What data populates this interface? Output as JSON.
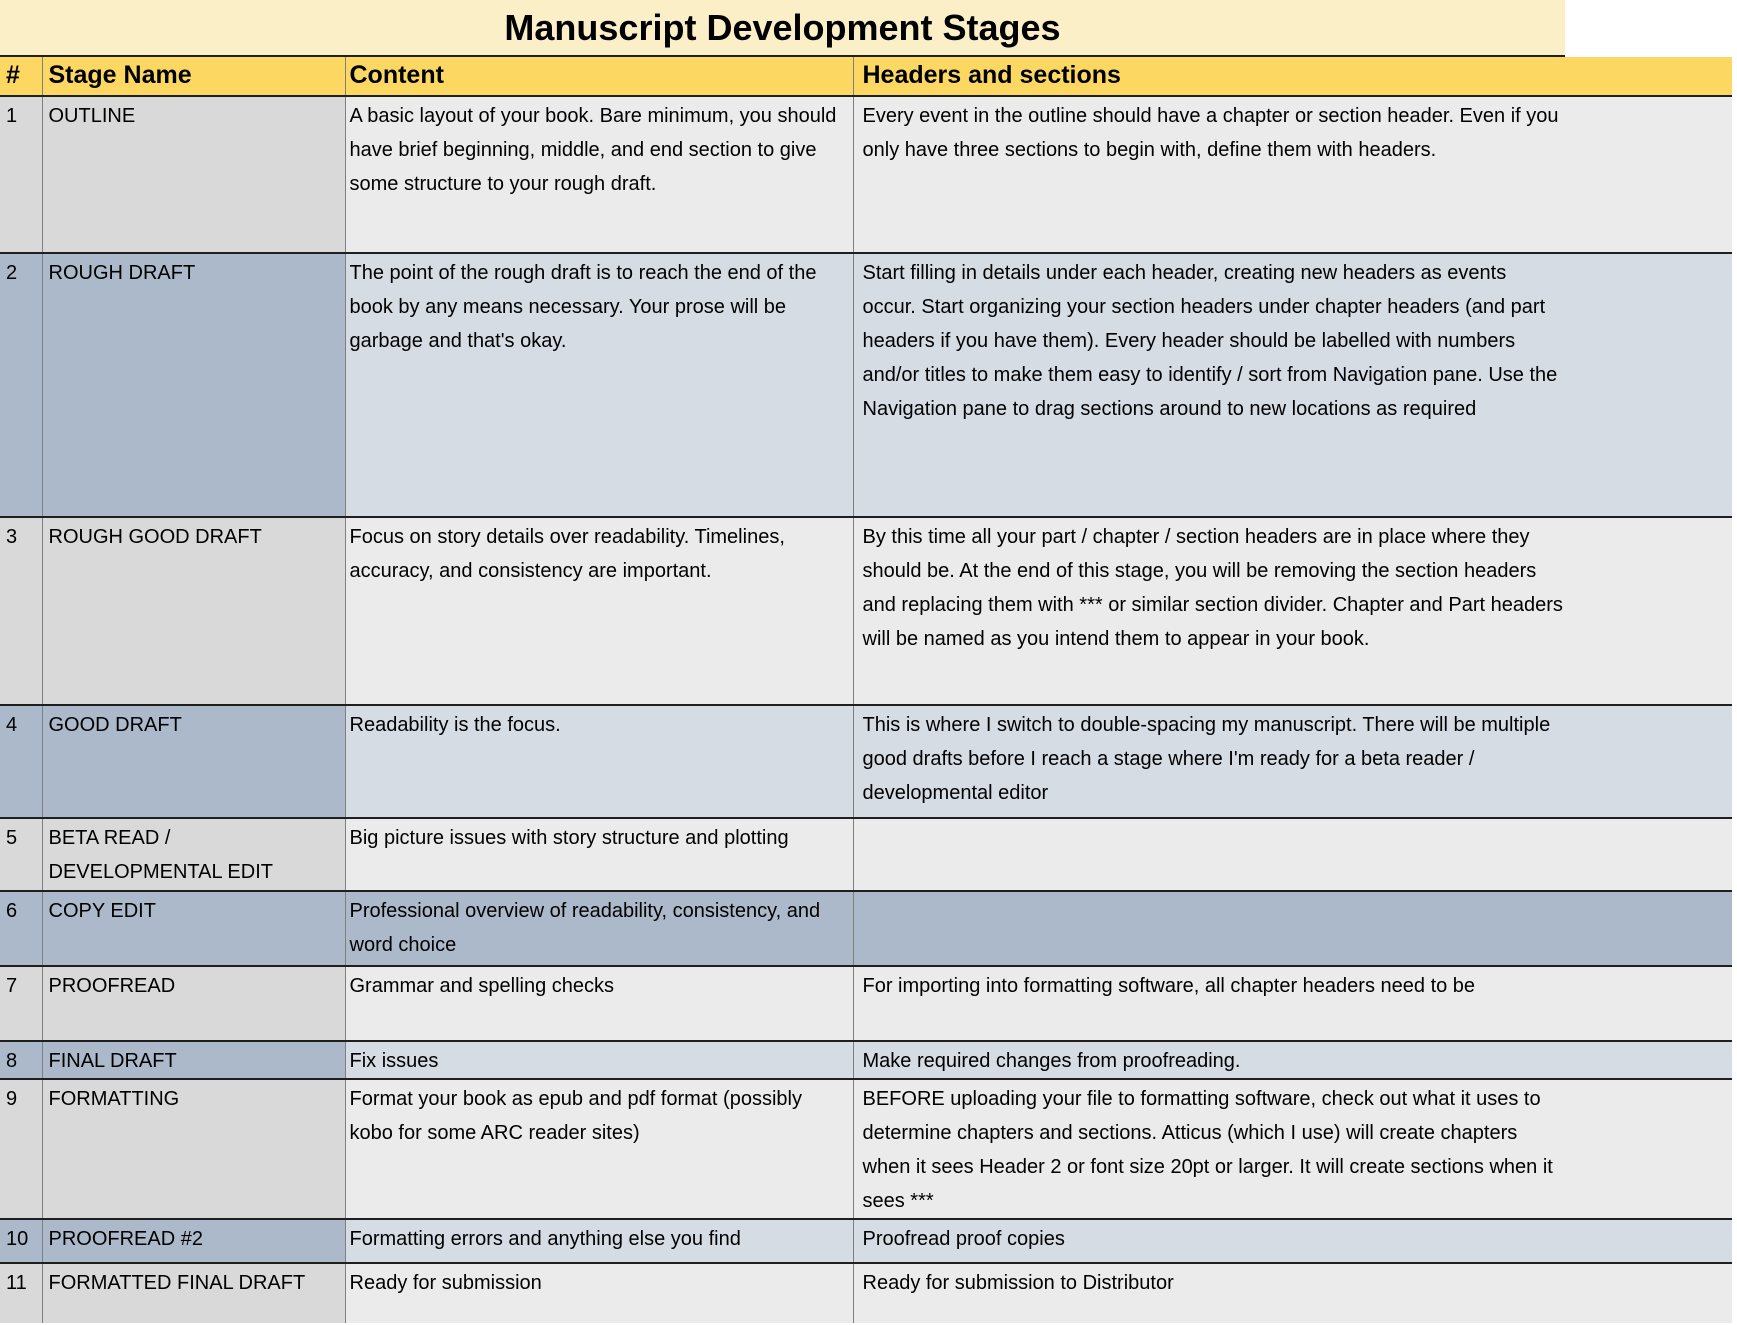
{
  "title": "Manuscript Development Stages",
  "columns": [
    {
      "key": "num",
      "label": "#"
    },
    {
      "key": "stage",
      "label": "Stage Name"
    },
    {
      "key": "content",
      "label": "Content"
    },
    {
      "key": "headers",
      "label": "Headers and sections"
    }
  ],
  "rows": [
    {
      "num": "1",
      "stage": "OUTLINE",
      "content": "A basic layout of your book. Bare minimum, you should have brief beginning, middle, and end section to give some structure to your rough draft.",
      "headers": "Every event in the outline should have a chapter or section header. Even if you only have three sections to begin with, define them with headers.",
      "shade": "gray"
    },
    {
      "num": "2",
      "stage": "ROUGH DRAFT",
      "content": "The point of the rough draft is to reach the end of the book by any means necessary. Your prose will be garbage and that's okay.",
      "headers": "Start filling in details under each header, creating new headers as events occur. Start organizing your section headers under chapter headers (and part headers if you have them). Every header should be labelled with numbers and/or titles to make them easy to identify / sort from Navigation pane. Use the Navigation pane to drag sections around to new locations as required",
      "shade": "blue"
    },
    {
      "num": "3",
      "stage": "ROUGH GOOD DRAFT",
      "content": "Focus on story details over readability. Timelines, accuracy, and consistency are important.",
      "headers": "By this time all your part / chapter / section headers are in place where they should be.  At the end of this stage, you will be removing the section headers and replacing them with *** or similar section divider. Chapter and Part headers will be named as you intend them to appear in your book.",
      "shade": "gray"
    },
    {
      "num": "4",
      "stage": "GOOD DRAFT",
      "content": "Readability is the focus.",
      "headers": "This is where I switch to double-spacing my manuscript. There will be multiple good drafts before I reach a stage where I'm ready for a beta reader / developmental editor",
      "shade": "blue"
    },
    {
      "num": "5",
      "stage": "BETA READ / DEVELOPMENTAL EDIT",
      "content": "Big picture issues with story structure and plotting",
      "headers": "",
      "shade": "gray"
    },
    {
      "num": "6",
      "stage": "COPY EDIT",
      "content": "Professional overview of readability, consistency, and word choice",
      "headers": "",
      "shade": "blue-full"
    },
    {
      "num": "7",
      "stage": "PROOFREAD",
      "content": "Grammar and spelling checks",
      "headers": "For importing into formatting software, all chapter headers need to be",
      "shade": "gray"
    },
    {
      "num": "8",
      "stage": "FINAL DRAFT",
      "content": "Fix issues",
      "headers": "Make required changes from proofreading.",
      "shade": "blue"
    },
    {
      "num": "9",
      "stage": "FORMATTING",
      "content": "Format your book as epub and pdf format (possibly kobo for some ARC reader sites)",
      "headers": "BEFORE uploading your file to formatting software, check out what it uses to determine chapters and sections.  Atticus (which I use) will create chapters when it sees Header 2 or font size 20pt or larger. It will create sections when it sees ***",
      "shade": "gray"
    },
    {
      "num": "10",
      "stage": "PROOFREAD #2",
      "content": "Formatting errors and anything else you find",
      "headers": "Proofread proof copies",
      "shade": "blue"
    },
    {
      "num": "11",
      "stage": "FORMATTED FINAL DRAFT",
      "content": "Ready for submission",
      "headers": "Ready for submission to Distributor",
      "shade": "gray"
    }
  ],
  "colors": {
    "title_bg": "#FBEFC8",
    "header_bg": "#FCD862",
    "gray_dark": "#D9D9D9",
    "gray_light": "#EBEBEB",
    "blue_dark": "#ACB9CA",
    "blue_light": "#D6DCE4",
    "row_border": "#1F1F1F",
    "col_border": "#7F7F7F",
    "text": "#000000"
  }
}
